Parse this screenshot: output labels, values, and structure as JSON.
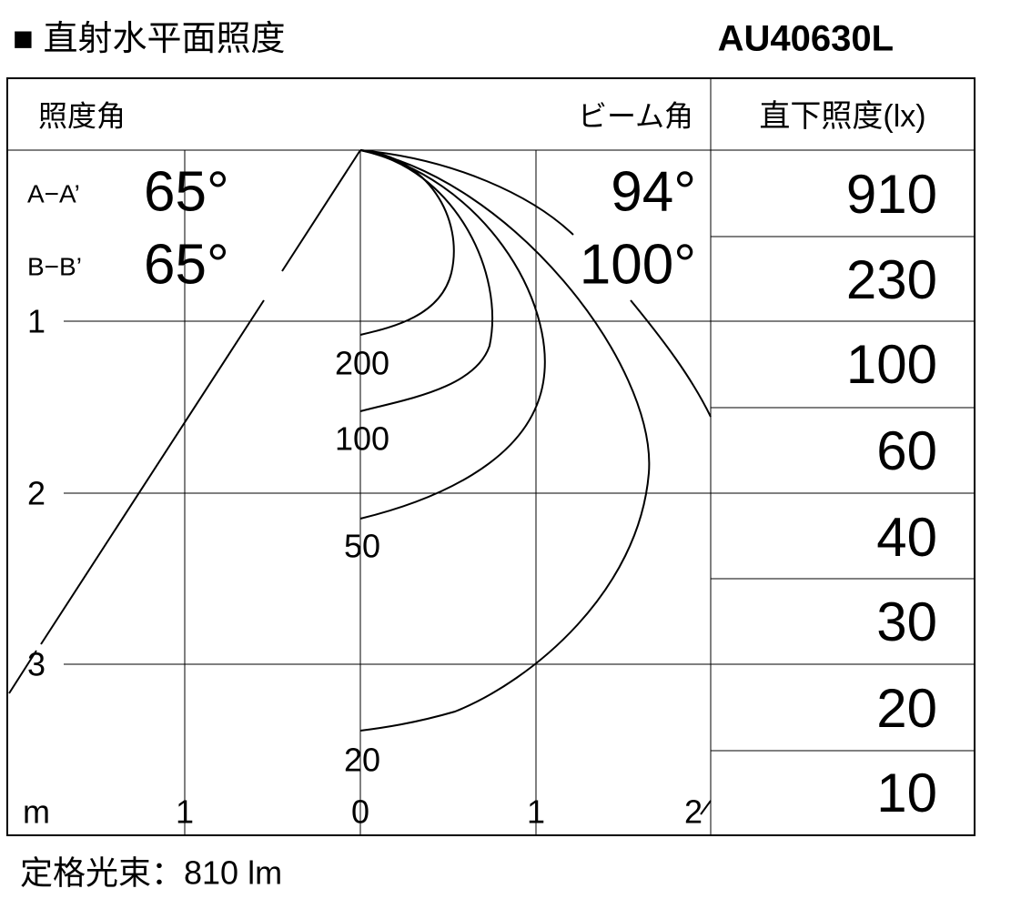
{
  "header": {
    "title": "■ 直射水平面照度",
    "model": "AU40630L"
  },
  "panel": {
    "left_heading": "照度角",
    "right_heading": "ビーム角",
    "table_heading": "直下照度(lx)",
    "angles": [
      {
        "label": "A−A’",
        "illum_angle": "65°",
        "beam_angle": "94°"
      },
      {
        "label": "B−B’",
        "illum_angle": "65°",
        "beam_angle": "100°"
      }
    ],
    "depth_labels": [
      "1",
      "2",
      "3"
    ],
    "width_labels": [
      "m",
      "1",
      "0",
      "1",
      "2"
    ],
    "contour_labels": [
      "200",
      "100",
      "50",
      "20"
    ],
    "illuminance": [
      "910",
      "230",
      "100",
      "60",
      "40",
      "30",
      "20",
      "10"
    ]
  },
  "footer": "定格光束：810 lm"
}
